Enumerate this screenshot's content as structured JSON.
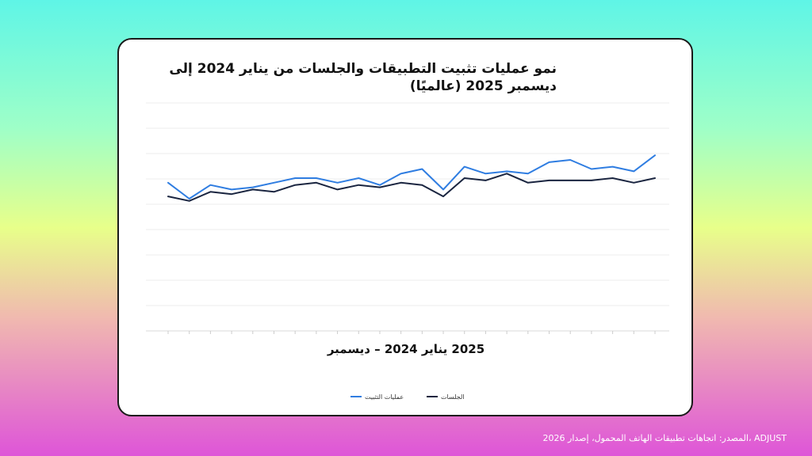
{
  "source_text": "ADJUST ،المصدر: اتجاهات تطبيقات الهاتف المحمول، إصدار 2026",
  "chart_data": {
    "type": "line",
    "title": "نمو عمليات تثبيت التطبيقات والجلسات من يناير 2024 إلى ديسمبر 2025 (عالميًا)",
    "xlabel": "2025 يناير 2024 – ديسمبر",
    "ylabel": "",
    "ylim": [
      0,
      100
    ],
    "grid": true,
    "legend": "bottom-center",
    "x": [
      1,
      2,
      3,
      4,
      5,
      6,
      7,
      8,
      9,
      10,
      11,
      12,
      13,
      14,
      15,
      16,
      17,
      18,
      19,
      20,
      21,
      22,
      23,
      24
    ],
    "series": [
      {
        "name": "عمليات التثبيت",
        "color": "#2f7de1",
        "values": [
          65,
          58,
          64,
          62,
          63,
          65,
          67,
          67,
          65,
          67,
          64,
          69,
          71,
          62,
          72,
          69,
          70,
          69,
          74,
          75,
          71,
          72,
          70,
          77
        ]
      },
      {
        "name": "الجلسات",
        "color": "#1a2540",
        "values": [
          59,
          57,
          61,
          60,
          62,
          61,
          64,
          65,
          62,
          64,
          63,
          65,
          64,
          59,
          67,
          66,
          69,
          65,
          66,
          66,
          66,
          67,
          65,
          67
        ]
      }
    ]
  }
}
